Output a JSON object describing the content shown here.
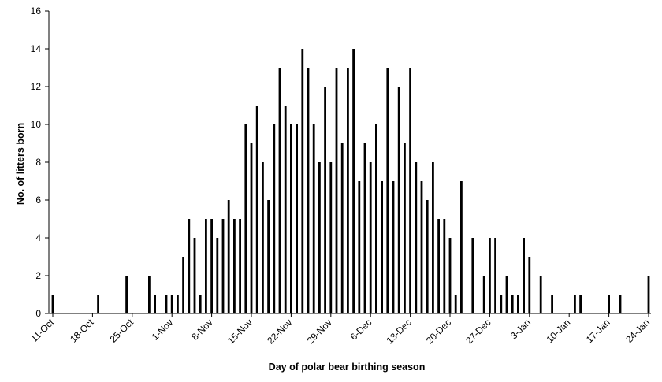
{
  "chart_data": {
    "type": "bar",
    "xlabel": "Day of polar bear birthing season",
    "ylabel": "No. of litters born",
    "ylim": [
      0,
      16
    ],
    "yticks": [
      0,
      2,
      4,
      6,
      8,
      10,
      12,
      14,
      16
    ],
    "x_tick_labels": [
      "11-Oct",
      "18-Oct",
      "25-Oct",
      "1-Nov",
      "8-Nov",
      "15-Nov",
      "22-Nov",
      "29-Nov",
      "6-Dec",
      "13-Dec",
      "20-Dec",
      "27-Dec",
      "3-Jan",
      "10-Jan",
      "17-Jan",
      "24-Jan"
    ],
    "grid": false,
    "legend": "none",
    "bar_color": "#000000",
    "x": [
      "11-Oct",
      "19-Oct",
      "24-Oct",
      "28-Oct",
      "29-Oct",
      "31-Oct",
      "1-Nov",
      "2-Nov",
      "3-Nov",
      "4-Nov",
      "5-Nov",
      "6-Nov",
      "7-Nov",
      "8-Nov",
      "9-Nov",
      "10-Nov",
      "11-Nov",
      "12-Nov",
      "13-Nov",
      "14-Nov",
      "15-Nov",
      "16-Nov",
      "17-Nov",
      "18-Nov",
      "19-Nov",
      "20-Nov",
      "21-Nov",
      "22-Nov",
      "23-Nov",
      "24-Nov",
      "25-Nov",
      "26-Nov",
      "27-Nov",
      "28-Nov",
      "29-Nov",
      "30-Nov",
      "1-Dec",
      "2-Dec",
      "3-Dec",
      "4-Dec",
      "5-Dec",
      "6-Dec",
      "7-Dec",
      "8-Dec",
      "9-Dec",
      "10-Dec",
      "11-Dec",
      "12-Dec",
      "13-Dec",
      "14-Dec",
      "15-Dec",
      "16-Dec",
      "17-Dec",
      "18-Dec",
      "19-Dec",
      "20-Dec",
      "21-Dec",
      "22-Dec",
      "24-Dec",
      "26-Dec",
      "27-Dec",
      "28-Dec",
      "29-Dec",
      "30-Dec",
      "31-Dec",
      "1-Jan",
      "2-Jan",
      "3-Jan",
      "5-Jan",
      "7-Jan",
      "11-Jan",
      "12-Jan",
      "17-Jan",
      "19-Jan",
      "24-Jan"
    ],
    "values": [
      1,
      1,
      2,
      2,
      1,
      1,
      1,
      1,
      3,
      5,
      4,
      1,
      5,
      5,
      4,
      5,
      6,
      5,
      5,
      10,
      9,
      11,
      8,
      6,
      10,
      13,
      11,
      10,
      10,
      14,
      13,
      10,
      8,
      12,
      8,
      13,
      9,
      13,
      14,
      7,
      9,
      8,
      10,
      7,
      13,
      7,
      12,
      9,
      13,
      8,
      7,
      6,
      8,
      5,
      5,
      4,
      1,
      7,
      4,
      2,
      4,
      4,
      1,
      2,
      1,
      1,
      4,
      3,
      2,
      1,
      1,
      1,
      1,
      1,
      2
    ]
  }
}
